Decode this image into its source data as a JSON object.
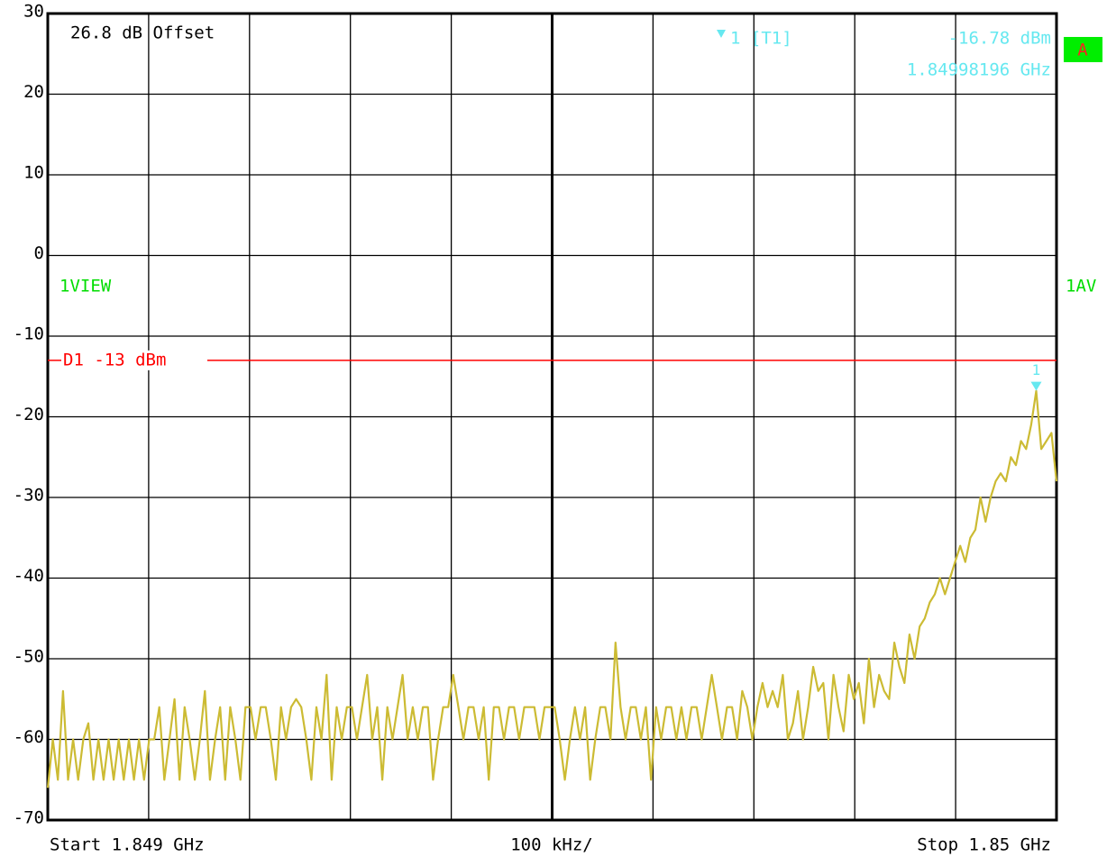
{
  "chart_data": {
    "type": "line",
    "annotation": "26.8 dB Offset",
    "badge": "A",
    "trace_labels": [
      "1VIEW",
      "1AV"
    ],
    "marker": {
      "label": "1",
      "readout_label": "1 [T1]",
      "value": -16.78,
      "value_label": "-16.78 dBm",
      "frequency": "1.84998196 GHz",
      "color": "#66e8f0"
    },
    "display_line": {
      "label": "D1 -13 dBm",
      "value": -13,
      "color": "#ff0000"
    },
    "x_labels": {
      "start": "Start 1.849 GHz",
      "division": "100 kHz/",
      "stop": "Stop 1.85 GHz"
    },
    "color": "#ccbb33",
    "ylim": [
      -70,
      30
    ],
    "yticks": [
      -70,
      -60,
      -50,
      -40,
      -30,
      -20,
      -10,
      0,
      10,
      20,
      30
    ],
    "grid": true,
    "values": [
      -66,
      -60,
      -65,
      -54,
      -65,
      -60,
      -65,
      -60,
      -58,
      -65,
      -60,
      -65,
      -60,
      -65,
      -60,
      -65,
      -60,
      -65,
      -60,
      -65,
      -60,
      -60,
      -56,
      -65,
      -60,
      -55,
      -65,
      -56,
      -60,
      -65,
      -60,
      -54,
      -65,
      -60,
      -56,
      -65,
      -56,
      -60,
      -65,
      -56,
      -56,
      -60,
      -56,
      -56,
      -60,
      -65,
      -56,
      -60,
      -56,
      -55,
      -56,
      -60,
      -65,
      -56,
      -60,
      -52,
      -65,
      -56,
      -60,
      -56,
      -56,
      -60,
      -56,
      -52,
      -60,
      -56,
      -65,
      -56,
      -60,
      -56,
      -52,
      -60,
      -56,
      -60,
      -56,
      -56,
      -65,
      -60,
      -56,
      -56,
      -52,
      -56,
      -60,
      -56,
      -56,
      -60,
      -56,
      -65,
      -56,
      -56,
      -60,
      -56,
      -56,
      -60,
      -56,
      -56,
      -56,
      -60,
      -56,
      -56,
      -56,
      -60,
      -65,
      -60,
      -56,
      -60,
      -56,
      -65,
      -60,
      -56,
      -56,
      -60,
      -48,
      -56,
      -60,
      -56,
      -56,
      -60,
      -56,
      -65,
      -56,
      -60,
      -56,
      -56,
      -60,
      -56,
      -60,
      -56,
      -56,
      -60,
      -56,
      -52,
      -56,
      -60,
      -56,
      -56,
      -60,
      -54,
      -56,
      -60,
      -56,
      -53,
      -56,
      -54,
      -56,
      -52,
      -60,
      -58,
      -54,
      -60,
      -56,
      -51,
      -54,
      -53,
      -60,
      -52,
      -56,
      -59,
      -52,
      -55,
      -53,
      -58,
      -50,
      -56,
      -52,
      -54,
      -55,
      -48,
      -51,
      -53,
      -47,
      -50,
      -46,
      -45,
      -43,
      -42,
      -40,
      -42,
      -40,
      -38,
      -36,
      -38,
      -35,
      -34,
      -30,
      -33,
      -30,
      -28,
      -27,
      -28,
      -25,
      -26,
      -23,
      -24,
      -21,
      -16.78,
      -24,
      -23,
      -22,
      -28
    ]
  }
}
